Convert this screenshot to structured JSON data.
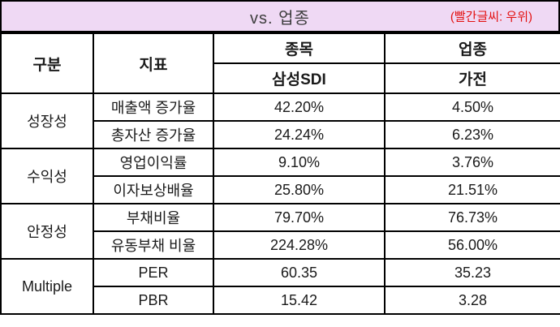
{
  "header": {
    "title": "vs. 업종",
    "note": "(빨간글씨: 우위)"
  },
  "colors": {
    "title_bar_bg": "#efd9f4",
    "highlight_red": "#e01111",
    "text_black": "#1a1a1a",
    "border": "#000000"
  },
  "table": {
    "col_headers": {
      "group": "구분",
      "metric": "지표",
      "stock": "종목",
      "industry": "업종",
      "stock_name": "삼성SDI",
      "industry_name": "가전"
    },
    "groups": [
      {
        "label": "성장성"
      },
      {
        "label": "수익성"
      },
      {
        "label": "안정성"
      },
      {
        "label": "Multiple"
      }
    ],
    "rows": [
      {
        "metric": "매출액 증가율",
        "stock": "42.20%",
        "industry": "4.50%",
        "highlight": "stock"
      },
      {
        "metric": "총자산 증가율",
        "stock": "24.24%",
        "industry": "6.23%",
        "highlight": "stock"
      },
      {
        "metric": "영업이익률",
        "stock": "9.10%",
        "industry": "3.76%",
        "highlight": "stock"
      },
      {
        "metric": "이자보상배율",
        "stock": "25.80%",
        "industry": "21.51%",
        "highlight": "stock"
      },
      {
        "metric": "부채비율",
        "stock": "79.70%",
        "industry": "76.73%",
        "highlight": "industry"
      },
      {
        "metric": "유동부채 비율",
        "stock": "224.28%",
        "industry": "56.00%",
        "highlight": "industry"
      },
      {
        "metric": "PER",
        "stock": "60.35",
        "industry": "35.23",
        "highlight": "industry"
      },
      {
        "metric": "PBR",
        "stock": "15.42",
        "industry": "3.28",
        "highlight": "industry"
      }
    ]
  },
  "chart_data": {
    "type": "table",
    "title": "vs. 업종",
    "annotation": "(빨간글씨: 우위)  — red text indicates superiority",
    "columns": [
      "구분",
      "지표",
      "종목: 삼성SDI",
      "업종: 가전"
    ],
    "rows": [
      [
        "성장성",
        "매출액 증가율",
        "42.20%",
        "4.50%"
      ],
      [
        "성장성",
        "총자산 증가율",
        "24.24%",
        "6.23%"
      ],
      [
        "수익성",
        "영업이익률",
        "9.10%",
        "3.76%"
      ],
      [
        "수익성",
        "이자보상배율",
        "25.80%",
        "21.51%"
      ],
      [
        "안정성",
        "부채비율",
        "79.70%",
        "76.73%"
      ],
      [
        "안정성",
        "유동부채 비율",
        "224.28%",
        "56.00%"
      ],
      [
        "Multiple",
        "PER",
        "60.35",
        "35.23"
      ],
      [
        "Multiple",
        "PBR",
        "15.42",
        "3.28"
      ]
    ],
    "red_cells": [
      "42.20%",
      "24.24%",
      "9.10%",
      "25.80%",
      "76.73%",
      "56.00%",
      "35.23",
      "3.28"
    ]
  }
}
